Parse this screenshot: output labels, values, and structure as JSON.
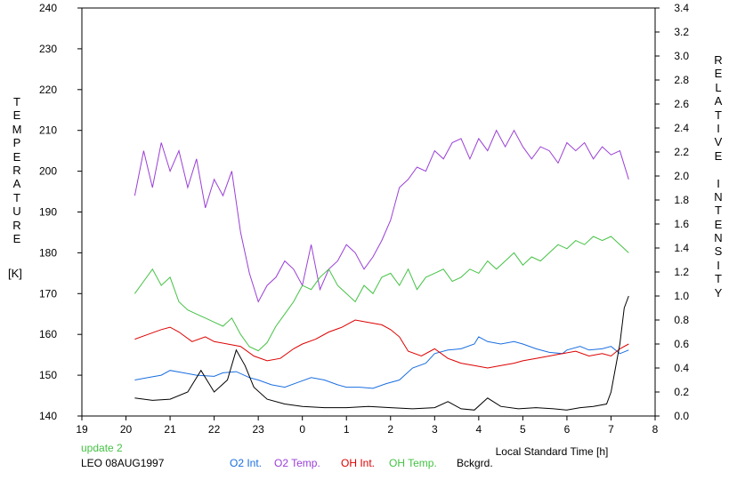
{
  "chart_data": {
    "type": "line",
    "x_ticks": [
      "19",
      "20",
      "21",
      "22",
      "23",
      "0",
      "1",
      "2",
      "3",
      "4",
      "5",
      "6",
      "7",
      "8"
    ],
    "xlabel": "Local Standard Time [h]",
    "left_axis": {
      "label": "TEMPERATURE",
      "unit": "[K]",
      "ylim": [
        140,
        240
      ],
      "ticks": [
        140,
        150,
        160,
        170,
        180,
        190,
        200,
        210,
        220,
        230,
        240
      ]
    },
    "right_axis": {
      "label": "RELATIVE INTENSITY",
      "ylim": [
        0.0,
        3.4
      ],
      "ticks": [
        "0.0",
        "0.2",
        "0.4",
        "0.6",
        "0.8",
        "1.0",
        "1.2",
        "1.4",
        "1.6",
        "1.8",
        "2.0",
        "2.2",
        "2.4",
        "2.6",
        "2.8",
        "3.0",
        "3.2",
        "3.4"
      ]
    },
    "annotations": {
      "update": "update 2",
      "station_date": "LEO 08AUG1997"
    },
    "legend_placement": "bottom",
    "grid": false,
    "series": [
      {
        "name": "O2 Int.",
        "axis": "right",
        "color": "#1a6ee0",
        "points": [
          [
            20.2,
            0.3
          ],
          [
            20.5,
            0.32
          ],
          [
            20.8,
            0.34
          ],
          [
            21.0,
            0.38
          ],
          [
            21.3,
            0.36
          ],
          [
            21.6,
            0.34
          ],
          [
            22.0,
            0.33
          ],
          [
            22.2,
            0.36
          ],
          [
            22.5,
            0.37
          ],
          [
            22.8,
            0.32
          ],
          [
            23.0,
            0.3
          ],
          [
            23.3,
            0.26
          ],
          [
            23.6,
            0.24
          ],
          [
            23.9,
            0.28
          ],
          [
            24.2,
            0.32
          ],
          [
            24.5,
            0.3
          ],
          [
            24.8,
            0.26
          ],
          [
            25.0,
            0.24
          ],
          [
            25.3,
            0.24
          ],
          [
            25.6,
            0.23
          ],
          [
            25.9,
            0.27
          ],
          [
            26.2,
            0.3
          ],
          [
            26.5,
            0.4
          ],
          [
            26.8,
            0.44
          ],
          [
            27.0,
            0.52
          ],
          [
            27.3,
            0.55
          ],
          [
            27.6,
            0.56
          ],
          [
            27.9,
            0.6
          ],
          [
            28.0,
            0.66
          ],
          [
            28.2,
            0.62
          ],
          [
            28.5,
            0.6
          ],
          [
            28.8,
            0.62
          ],
          [
            29.0,
            0.6
          ],
          [
            29.3,
            0.56
          ],
          [
            29.6,
            0.53
          ],
          [
            29.9,
            0.52
          ],
          [
            30.0,
            0.55
          ],
          [
            30.3,
            0.58
          ],
          [
            30.5,
            0.55
          ],
          [
            30.8,
            0.56
          ],
          [
            31.0,
            0.58
          ],
          [
            31.2,
            0.52
          ],
          [
            31.4,
            0.55
          ]
        ]
      },
      {
        "name": "O2 Temp.",
        "axis": "left",
        "color": "#9a3fd6",
        "points": [
          [
            20.2,
            194
          ],
          [
            20.4,
            205
          ],
          [
            20.6,
            196
          ],
          [
            20.8,
            207
          ],
          [
            21.0,
            200
          ],
          [
            21.2,
            205
          ],
          [
            21.4,
            196
          ],
          [
            21.6,
            203
          ],
          [
            21.8,
            191
          ],
          [
            22.0,
            198
          ],
          [
            22.2,
            194
          ],
          [
            22.4,
            200
          ],
          [
            22.6,
            185
          ],
          [
            22.8,
            175
          ],
          [
            23.0,
            168
          ],
          [
            23.2,
            172
          ],
          [
            23.4,
            174
          ],
          [
            23.6,
            178
          ],
          [
            23.8,
            176
          ],
          [
            24.0,
            172
          ],
          [
            24.2,
            182
          ],
          [
            24.4,
            171
          ],
          [
            24.6,
            176
          ],
          [
            24.8,
            178
          ],
          [
            25.0,
            182
          ],
          [
            25.2,
            180
          ],
          [
            25.4,
            176
          ],
          [
            25.6,
            179
          ],
          [
            25.8,
            183
          ],
          [
            26.0,
            188
          ],
          [
            26.2,
            196
          ],
          [
            26.4,
            198
          ],
          [
            26.6,
            201
          ],
          [
            26.8,
            200
          ],
          [
            27.0,
            205
          ],
          [
            27.2,
            203
          ],
          [
            27.4,
            207
          ],
          [
            27.6,
            208
          ],
          [
            27.8,
            203
          ],
          [
            28.0,
            208
          ],
          [
            28.2,
            205
          ],
          [
            28.4,
            210
          ],
          [
            28.6,
            206
          ],
          [
            28.8,
            210
          ],
          [
            29.0,
            206
          ],
          [
            29.2,
            203
          ],
          [
            29.4,
            206
          ],
          [
            29.6,
            205
          ],
          [
            29.8,
            202
          ],
          [
            30.0,
            207
          ],
          [
            30.2,
            205
          ],
          [
            30.4,
            207
          ],
          [
            30.6,
            203
          ],
          [
            30.8,
            206
          ],
          [
            31.0,
            204
          ],
          [
            31.2,
            205
          ],
          [
            31.4,
            198
          ]
        ]
      },
      {
        "name": "OH Int.",
        "axis": "right",
        "color": "#dd0000",
        "points": [
          [
            20.2,
            0.64
          ],
          [
            20.5,
            0.68
          ],
          [
            20.8,
            0.72
          ],
          [
            21.0,
            0.74
          ],
          [
            21.2,
            0.7
          ],
          [
            21.5,
            0.62
          ],
          [
            21.8,
            0.66
          ],
          [
            22.0,
            0.62
          ],
          [
            22.3,
            0.6
          ],
          [
            22.6,
            0.58
          ],
          [
            22.9,
            0.5
          ],
          [
            23.2,
            0.46
          ],
          [
            23.5,
            0.48
          ],
          [
            23.8,
            0.56
          ],
          [
            24.0,
            0.6
          ],
          [
            24.3,
            0.64
          ],
          [
            24.6,
            0.7
          ],
          [
            24.9,
            0.74
          ],
          [
            25.2,
            0.8
          ],
          [
            25.5,
            0.78
          ],
          [
            25.8,
            0.76
          ],
          [
            26.0,
            0.72
          ],
          [
            26.2,
            0.66
          ],
          [
            26.4,
            0.54
          ],
          [
            26.7,
            0.5
          ],
          [
            27.0,
            0.56
          ],
          [
            27.3,
            0.48
          ],
          [
            27.6,
            0.44
          ],
          [
            27.9,
            0.42
          ],
          [
            28.2,
            0.4
          ],
          [
            28.5,
            0.42
          ],
          [
            28.8,
            0.44
          ],
          [
            29.0,
            0.46
          ],
          [
            29.3,
            0.48
          ],
          [
            29.6,
            0.5
          ],
          [
            29.9,
            0.52
          ],
          [
            30.2,
            0.54
          ],
          [
            30.5,
            0.5
          ],
          [
            30.8,
            0.52
          ],
          [
            31.0,
            0.5
          ],
          [
            31.2,
            0.56
          ],
          [
            31.4,
            0.6
          ]
        ]
      },
      {
        "name": "OH Temp.",
        "axis": "left",
        "color": "#44c244",
        "points": [
          [
            20.2,
            170
          ],
          [
            20.4,
            173
          ],
          [
            20.6,
            176
          ],
          [
            20.8,
            172
          ],
          [
            21.0,
            174
          ],
          [
            21.2,
            168
          ],
          [
            21.4,
            166
          ],
          [
            21.6,
            165
          ],
          [
            21.8,
            164
          ],
          [
            22.0,
            163
          ],
          [
            22.2,
            162
          ],
          [
            22.4,
            164
          ],
          [
            22.6,
            160
          ],
          [
            22.8,
            157
          ],
          [
            23.0,
            156
          ],
          [
            23.2,
            158
          ],
          [
            23.4,
            162
          ],
          [
            23.6,
            165
          ],
          [
            23.8,
            168
          ],
          [
            24.0,
            172
          ],
          [
            24.2,
            171
          ],
          [
            24.4,
            174
          ],
          [
            24.6,
            176
          ],
          [
            24.8,
            172
          ],
          [
            25.0,
            170
          ],
          [
            25.2,
            168
          ],
          [
            25.4,
            172
          ],
          [
            25.6,
            170
          ],
          [
            25.8,
            174
          ],
          [
            26.0,
            175
          ],
          [
            26.2,
            172
          ],
          [
            26.4,
            176
          ],
          [
            26.6,
            171
          ],
          [
            26.8,
            174
          ],
          [
            27.0,
            175
          ],
          [
            27.2,
            176
          ],
          [
            27.4,
            173
          ],
          [
            27.6,
            174
          ],
          [
            27.8,
            176
          ],
          [
            28.0,
            175
          ],
          [
            28.2,
            178
          ],
          [
            28.4,
            176
          ],
          [
            28.6,
            178
          ],
          [
            28.8,
            180
          ],
          [
            29.0,
            177
          ],
          [
            29.2,
            179
          ],
          [
            29.4,
            178
          ],
          [
            29.6,
            180
          ],
          [
            29.8,
            182
          ],
          [
            30.0,
            181
          ],
          [
            30.2,
            183
          ],
          [
            30.4,
            182
          ],
          [
            30.6,
            184
          ],
          [
            30.8,
            183
          ],
          [
            31.0,
            184
          ],
          [
            31.2,
            182
          ],
          [
            31.4,
            180
          ]
        ]
      },
      {
        "name": "Bckgrd.",
        "axis": "right",
        "color": "#000000",
        "points": [
          [
            20.2,
            0.15
          ],
          [
            20.6,
            0.13
          ],
          [
            21.0,
            0.14
          ],
          [
            21.4,
            0.2
          ],
          [
            21.7,
            0.38
          ],
          [
            22.0,
            0.2
          ],
          [
            22.3,
            0.3
          ],
          [
            22.5,
            0.55
          ],
          [
            22.7,
            0.42
          ],
          [
            22.9,
            0.24
          ],
          [
            23.2,
            0.14
          ],
          [
            23.6,
            0.1
          ],
          [
            24.0,
            0.08
          ],
          [
            24.5,
            0.07
          ],
          [
            25.0,
            0.07
          ],
          [
            25.5,
            0.08
          ],
          [
            26.0,
            0.07
          ],
          [
            26.5,
            0.06
          ],
          [
            27.0,
            0.07
          ],
          [
            27.3,
            0.12
          ],
          [
            27.6,
            0.06
          ],
          [
            27.9,
            0.05
          ],
          [
            28.2,
            0.15
          ],
          [
            28.5,
            0.08
          ],
          [
            28.9,
            0.06
          ],
          [
            29.3,
            0.07
          ],
          [
            29.7,
            0.06
          ],
          [
            30.0,
            0.05
          ],
          [
            30.3,
            0.07
          ],
          [
            30.6,
            0.08
          ],
          [
            30.9,
            0.1
          ],
          [
            31.0,
            0.2
          ],
          [
            31.2,
            0.6
          ],
          [
            31.3,
            0.9
          ],
          [
            31.4,
            1.0
          ]
        ]
      }
    ]
  }
}
